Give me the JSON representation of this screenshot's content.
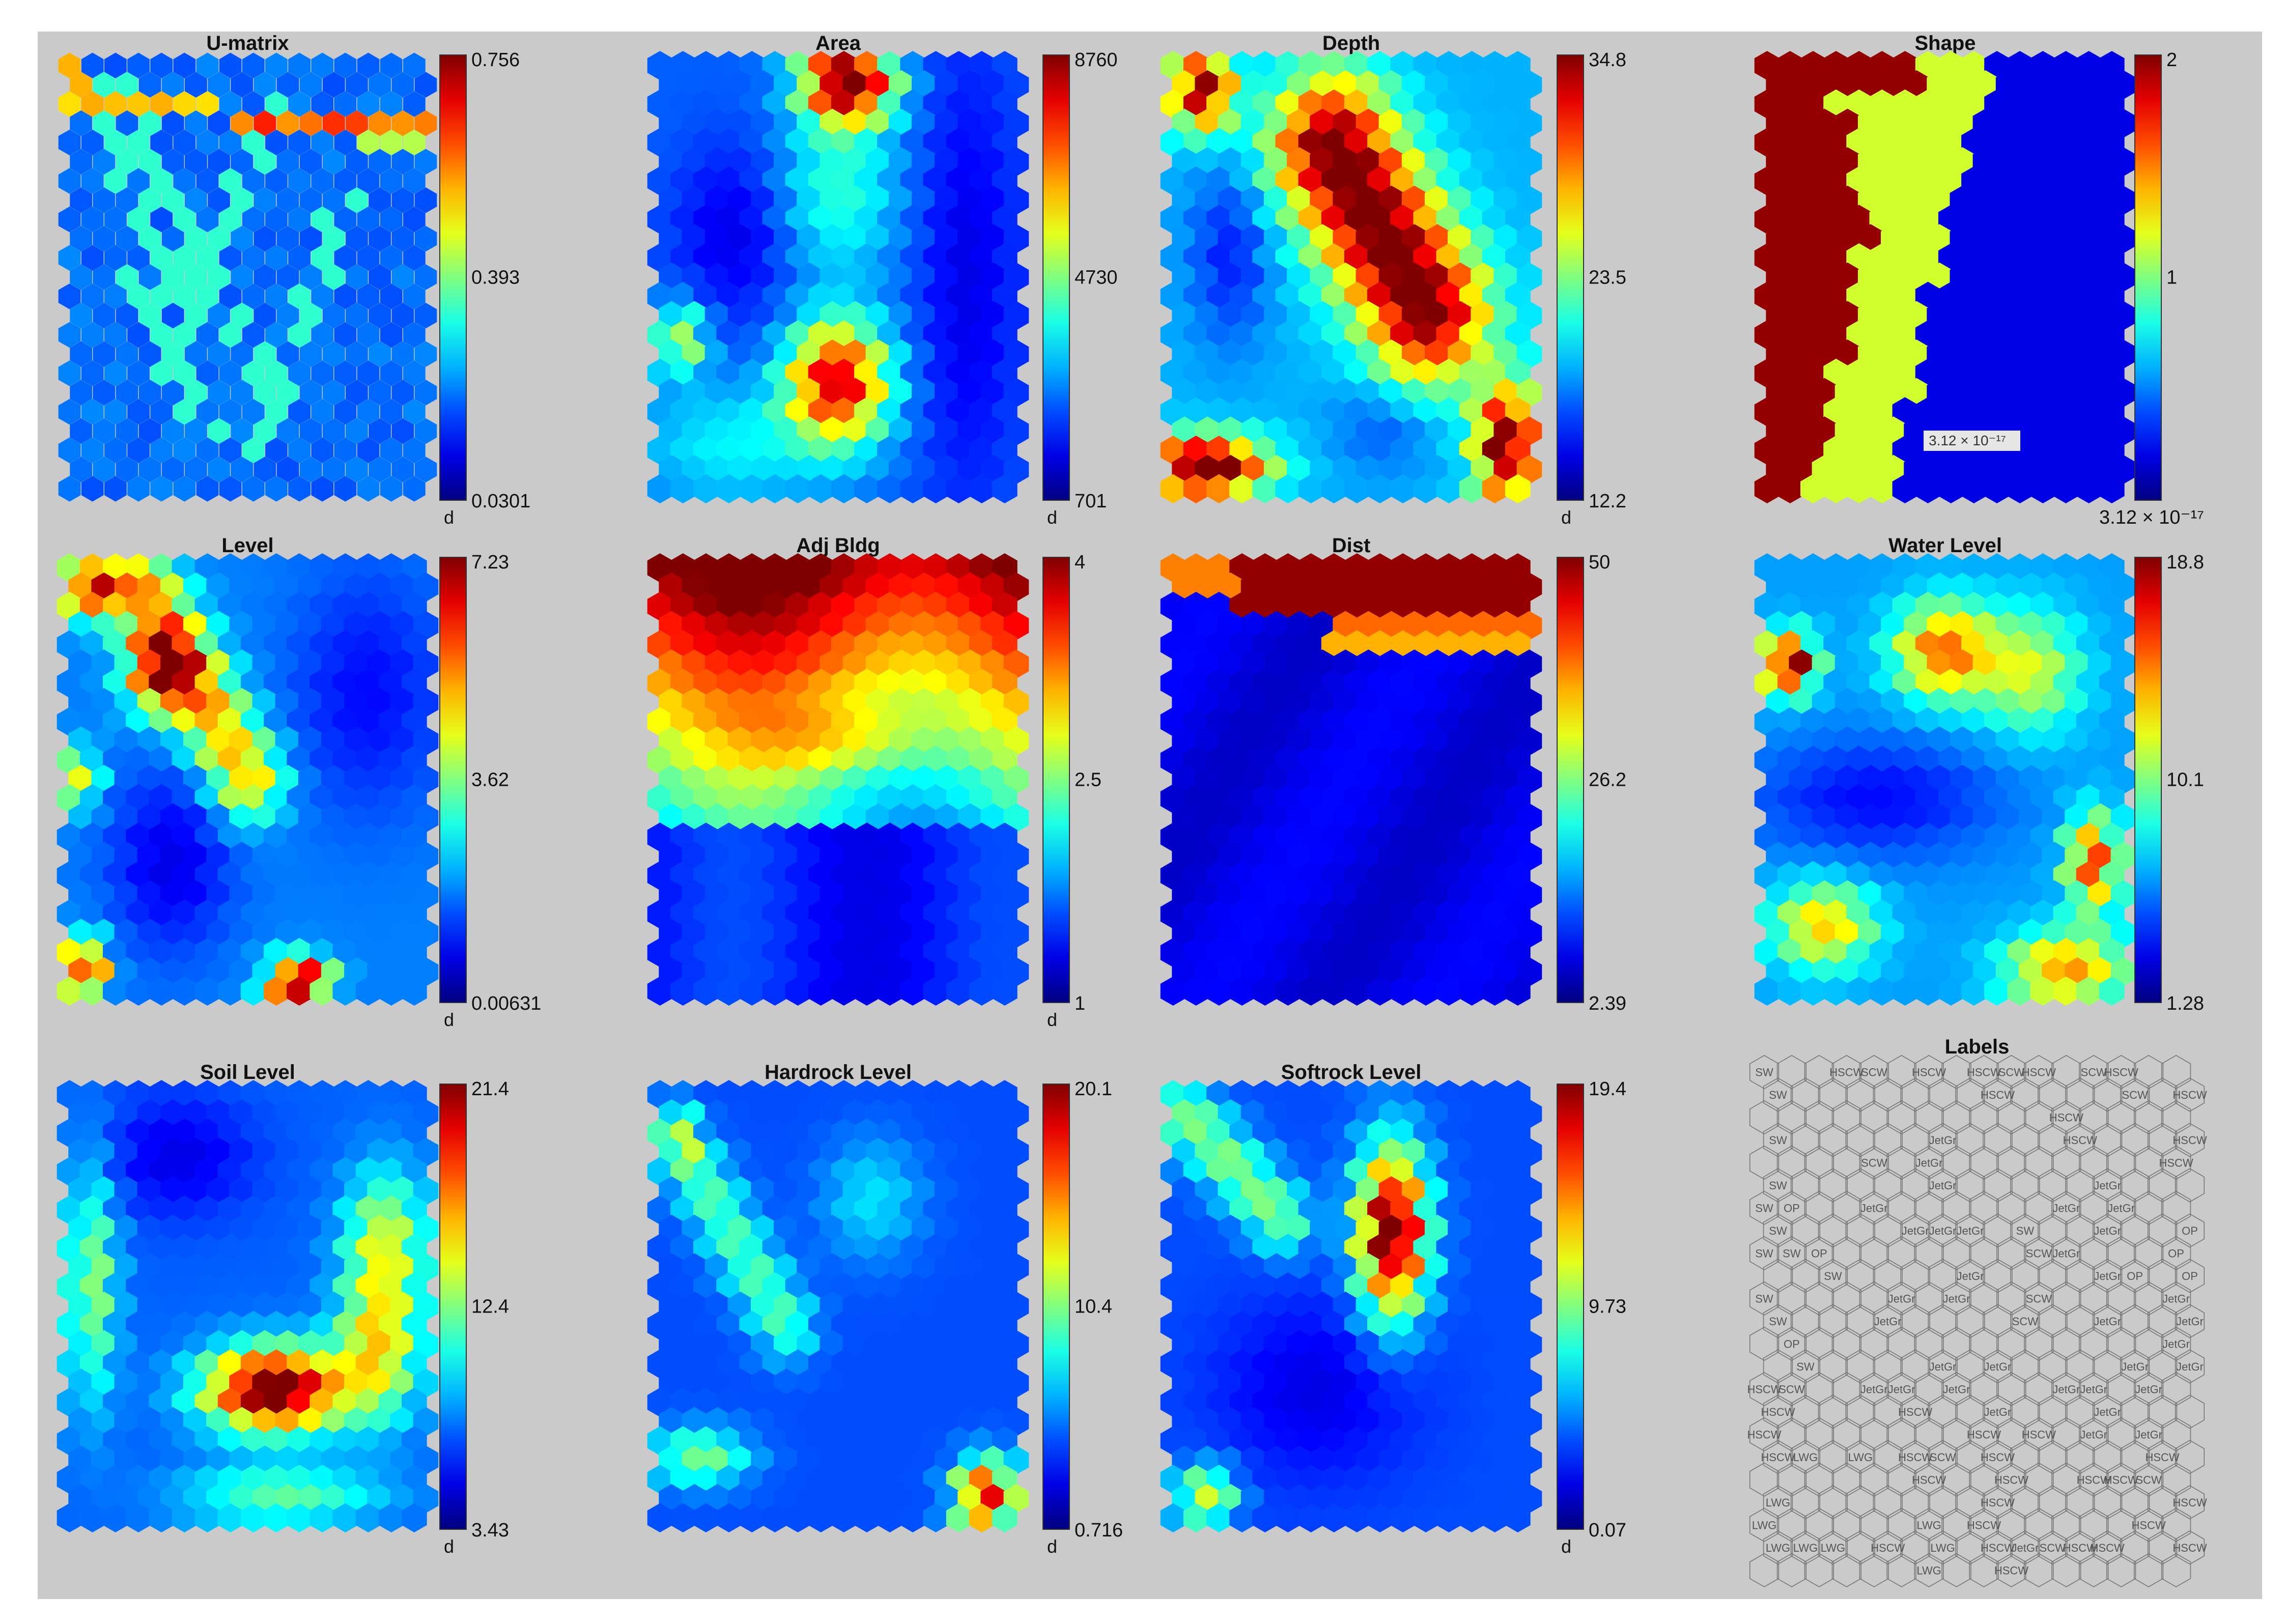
{
  "chart_data": [
    {
      "type": "heatmap",
      "title": "U-matrix",
      "colorbar": {
        "max": "0.756",
        "mid": "0.393",
        "min": "0.0301",
        "unit": "d"
      },
      "pattern": "umatrix"
    },
    {
      "type": "heatmap",
      "title": "Area",
      "colorbar": {
        "max": "8760",
        "mid": "4730",
        "min": "701",
        "unit": "d"
      },
      "pattern": "area"
    },
    {
      "type": "heatmap",
      "title": "Depth",
      "colorbar": {
        "max": "34.8",
        "mid": "23.5",
        "min": "12.2",
        "unit": "d"
      },
      "pattern": "depth"
    },
    {
      "type": "heatmap",
      "title": "Shape",
      "colorbar": {
        "max": "2",
        "mid": "1",
        "min": "",
        "unit": ""
      },
      "pattern": "shape",
      "annotation": "3.12 × 10⁻¹⁷",
      "extra_label": "3.12 × 10⁻¹⁷"
    },
    {
      "type": "heatmap",
      "title": "Level",
      "colorbar": {
        "max": "7.23",
        "mid": "3.62",
        "min": "0.00631",
        "unit": "d"
      },
      "pattern": "level"
    },
    {
      "type": "heatmap",
      "title": "Adj Bldg",
      "colorbar": {
        "max": "4",
        "mid": "2.5",
        "min": "1",
        "unit": "d"
      },
      "pattern": "adj"
    },
    {
      "type": "heatmap",
      "title": "Dist",
      "colorbar": {
        "max": "50",
        "mid": "26.2",
        "min": "2.39",
        "unit": ""
      },
      "pattern": "dist"
    },
    {
      "type": "heatmap",
      "title": "Water Level",
      "colorbar": {
        "max": "18.8",
        "mid": "10.1",
        "min": "1.28",
        "unit": ""
      },
      "pattern": "water"
    },
    {
      "type": "heatmap",
      "title": "Soil Level",
      "colorbar": {
        "max": "21.4",
        "mid": "12.4",
        "min": "3.43",
        "unit": "d"
      },
      "pattern": "soil"
    },
    {
      "type": "heatmap",
      "title": "Hardrock Level",
      "colorbar": {
        "max": "20.1",
        "mid": "10.4",
        "min": "0.716",
        "unit": "d"
      },
      "pattern": "hard"
    },
    {
      "type": "heatmap",
      "title": "Softrock Level",
      "colorbar": {
        "max": "19.4",
        "mid": "9.73",
        "min": "0.07",
        "unit": "d"
      },
      "pattern": "soft"
    }
  ],
  "labels_panel": {
    "title": "Labels",
    "cells": [
      {
        "r": 0,
        "c": 0,
        "t": "SW"
      },
      {
        "r": 1,
        "c": 0,
        "t": "SW"
      },
      {
        "r": 0,
        "c": 3,
        "t": "HSCW"
      },
      {
        "r": 0,
        "c": 4,
        "t": "SCW"
      },
      {
        "r": 0,
        "c": 6,
        "t": "HSCW"
      },
      {
        "r": 0,
        "c": 8,
        "t": "HSCW"
      },
      {
        "r": 0,
        "c": 9,
        "t": "SCW"
      },
      {
        "r": 0,
        "c": 10,
        "t": "HSCW"
      },
      {
        "r": 0,
        "c": 12,
        "t": "SCW"
      },
      {
        "r": 0,
        "c": 13,
        "t": "HSCW"
      },
      {
        "r": 1,
        "c": 8,
        "t": "HSCW"
      },
      {
        "r": 1,
        "c": 13,
        "t": "SCW"
      },
      {
        "r": 1,
        "c": 15,
        "t": "HSCW"
      },
      {
        "r": 2,
        "c": 11,
        "t": "HSCW"
      },
      {
        "r": 3,
        "c": 0,
        "t": "SW"
      },
      {
        "r": 3,
        "c": 6,
        "t": "JetGr"
      },
      {
        "r": 3,
        "c": 11,
        "t": "HSCW"
      },
      {
        "r": 3,
        "c": 15,
        "t": "HSCW"
      },
      {
        "r": 4,
        "c": 4,
        "t": "SCW"
      },
      {
        "r": 4,
        "c": 6,
        "t": "JetGr"
      },
      {
        "r": 4,
        "c": 15,
        "t": "HSCW"
      },
      {
        "r": 5,
        "c": 0,
        "t": "SW"
      },
      {
        "r": 5,
        "c": 6,
        "t": "JetGr"
      },
      {
        "r": 5,
        "c": 12,
        "t": "JetGr"
      },
      {
        "r": 6,
        "c": 0,
        "t": "SW"
      },
      {
        "r": 6,
        "c": 1,
        "t": "OP"
      },
      {
        "r": 6,
        "c": 4,
        "t": "JetGr"
      },
      {
        "r": 6,
        "c": 11,
        "t": "JetGr"
      },
      {
        "r": 6,
        "c": 13,
        "t": "JetGr"
      },
      {
        "r": 7,
        "c": 0,
        "t": "SW"
      },
      {
        "r": 7,
        "c": 5,
        "t": "JetGr"
      },
      {
        "r": 7,
        "c": 6,
        "t": "JetGr"
      },
      {
        "r": 7,
        "c": 7,
        "t": "JetGr"
      },
      {
        "r": 7,
        "c": 9,
        "t": "SW"
      },
      {
        "r": 7,
        "c": 12,
        "t": "JetGr"
      },
      {
        "r": 7,
        "c": 15,
        "t": "OP"
      },
      {
        "r": 8,
        "c": 0,
        "t": "SW"
      },
      {
        "r": 8,
        "c": 1,
        "t": "SW"
      },
      {
        "r": 8,
        "c": 2,
        "t": "OP"
      },
      {
        "r": 8,
        "c": 10,
        "t": "SCW"
      },
      {
        "r": 8,
        "c": 11,
        "t": "JetGr"
      },
      {
        "r": 8,
        "c": 15,
        "t": "OP"
      },
      {
        "r": 9,
        "c": 2,
        "t": "SW"
      },
      {
        "r": 9,
        "c": 7,
        "t": "JetGr"
      },
      {
        "r": 9,
        "c": 12,
        "t": "JetGr"
      },
      {
        "r": 9,
        "c": 13,
        "t": "OP"
      },
      {
        "r": 9,
        "c": 15,
        "t": "OP"
      },
      {
        "r": 10,
        "c": 0,
        "t": "SW"
      },
      {
        "r": 10,
        "c": 5,
        "t": "JetGr"
      },
      {
        "r": 10,
        "c": 7,
        "t": "JetGr"
      },
      {
        "r": 10,
        "c": 10,
        "t": "SCW"
      },
      {
        "r": 10,
        "c": 15,
        "t": "JetGr"
      },
      {
        "r": 11,
        "c": 0,
        "t": "SW"
      },
      {
        "r": 11,
        "c": 4,
        "t": "JetGr"
      },
      {
        "r": 11,
        "c": 9,
        "t": "SCW"
      },
      {
        "r": 11,
        "c": 12,
        "t": "JetGr"
      },
      {
        "r": 11,
        "c": 15,
        "t": "JetGr"
      },
      {
        "r": 12,
        "c": 1,
        "t": "OP"
      },
      {
        "r": 12,
        "c": 15,
        "t": "JetGr"
      },
      {
        "r": 13,
        "c": 1,
        "t": "SW"
      },
      {
        "r": 13,
        "c": 6,
        "t": "JetGr"
      },
      {
        "r": 13,
        "c": 8,
        "t": "JetGr"
      },
      {
        "r": 13,
        "c": 13,
        "t": "JetGr"
      },
      {
        "r": 13,
        "c": 15,
        "t": "JetGr"
      },
      {
        "r": 14,
        "c": 0,
        "t": "HSCW"
      },
      {
        "r": 14,
        "c": 1,
        "t": "SCW"
      },
      {
        "r": 14,
        "c": 4,
        "t": "JetGr"
      },
      {
        "r": 14,
        "c": 5,
        "t": "JetGr"
      },
      {
        "r": 14,
        "c": 7,
        "t": "JetGr"
      },
      {
        "r": 14,
        "c": 11,
        "t": "JetGr"
      },
      {
        "r": 14,
        "c": 12,
        "t": "JetGr"
      },
      {
        "r": 14,
        "c": 14,
        "t": "JetGr"
      },
      {
        "r": 15,
        "c": 0,
        "t": "HSCW"
      },
      {
        "r": 15,
        "c": 5,
        "t": "HSCW"
      },
      {
        "r": 15,
        "c": 8,
        "t": "JetGr"
      },
      {
        "r": 15,
        "c": 12,
        "t": "JetGr"
      },
      {
        "r": 16,
        "c": 0,
        "t": "HSCW"
      },
      {
        "r": 16,
        "c": 8,
        "t": "HSCW"
      },
      {
        "r": 16,
        "c": 10,
        "t": "HSCW"
      },
      {
        "r": 16,
        "c": 12,
        "t": "JetGr"
      },
      {
        "r": 16,
        "c": 14,
        "t": "JetGr"
      },
      {
        "r": 17,
        "c": 0,
        "t": "HSCW"
      },
      {
        "r": 17,
        "c": 1,
        "t": "LWG"
      },
      {
        "r": 17,
        "c": 3,
        "t": "LWG"
      },
      {
        "r": 17,
        "c": 5,
        "t": "HSCW"
      },
      {
        "r": 17,
        "c": 6,
        "t": "SCW"
      },
      {
        "r": 17,
        "c": 8,
        "t": "HSCW"
      },
      {
        "r": 17,
        "c": 14,
        "t": "HSCW"
      },
      {
        "r": 18,
        "c": 6,
        "t": "HSCW"
      },
      {
        "r": 18,
        "c": 9,
        "t": "HSCW"
      },
      {
        "r": 18,
        "c": 12,
        "t": "HSCW"
      },
      {
        "r": 18,
        "c": 13,
        "t": "HSCW"
      },
      {
        "r": 18,
        "c": 14,
        "t": "SCW"
      },
      {
        "r": 19,
        "c": 0,
        "t": "LWG"
      },
      {
        "r": 19,
        "c": 8,
        "t": "HSCW"
      },
      {
        "r": 19,
        "c": 15,
        "t": "HSCW"
      },
      {
        "r": 20,
        "c": 0,
        "t": "LWG"
      },
      {
        "r": 20,
        "c": 6,
        "t": "LWG"
      },
      {
        "r": 20,
        "c": 8,
        "t": "HSCW"
      },
      {
        "r": 20,
        "c": 14,
        "t": "HSCW"
      },
      {
        "r": 21,
        "c": 0,
        "t": "LWG"
      },
      {
        "r": 21,
        "c": 1,
        "t": "LWG"
      },
      {
        "r": 21,
        "c": 2,
        "t": "LWG"
      },
      {
        "r": 21,
        "c": 4,
        "t": "HSCW"
      },
      {
        "r": 21,
        "c": 6,
        "t": "LWG"
      },
      {
        "r": 21,
        "c": 8,
        "t": "HSCW"
      },
      {
        "r": 21,
        "c": 9,
        "t": "JetGr"
      },
      {
        "r": 21,
        "c": 10,
        "t": "SCW"
      },
      {
        "r": 21,
        "c": 11,
        "t": "HSCW"
      },
      {
        "r": 21,
        "c": 12,
        "t": "HSCW"
      },
      {
        "r": 21,
        "c": 15,
        "t": "HSCW"
      },
      {
        "r": 22,
        "c": 6,
        "t": "LWG"
      },
      {
        "r": 22,
        "c": 9,
        "t": "HSCW"
      }
    ]
  }
}
